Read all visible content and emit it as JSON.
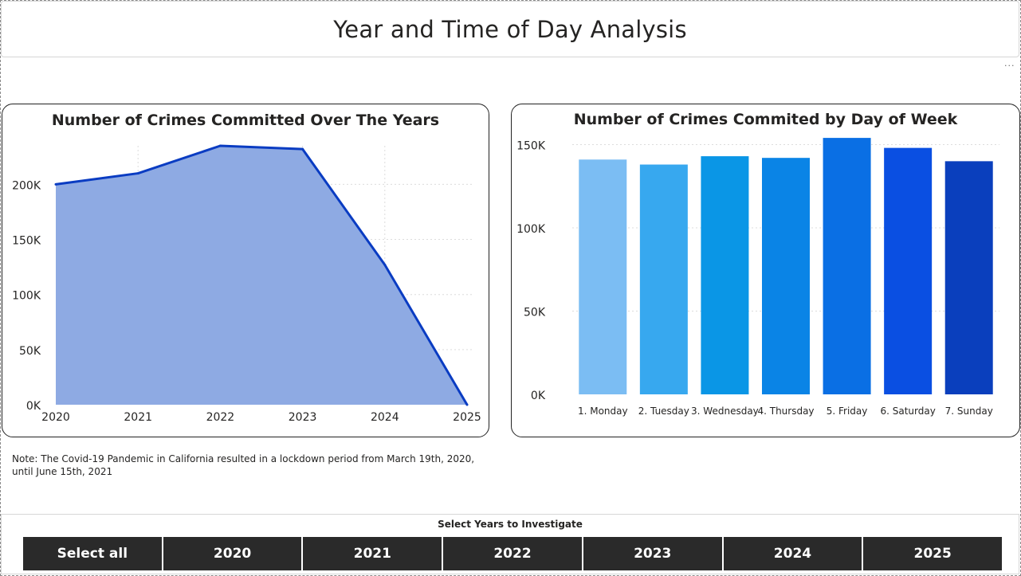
{
  "header": {
    "title": "Year and Time of Day Analysis"
  },
  "toolbar": {
    "more_icon": "more-options-icon",
    "more_glyph": "···"
  },
  "note": {
    "text": "Note: The Covid-19 Pandemic in California resulted in a lockdown period from March 19th, 2020, until June 15th, 2021"
  },
  "slicer": {
    "title": "Select Years to Investigate",
    "options": [
      "Select all",
      "2020",
      "2021",
      "2022",
      "2023",
      "2024",
      "2025"
    ]
  },
  "colors": {
    "area_fill": "#8eaae3",
    "area_line": "#0a3cc2",
    "bars": [
      "#7bbdf3",
      "#37a8ef",
      "#0a96e6",
      "#0a84e6",
      "#0a6fe4",
      "#0a4fe2",
      "#0a3fbd"
    ],
    "slicer_button": "#2a2a2a"
  },
  "chart_data": [
    {
      "type": "area",
      "title": "Number of Crimes Committed Over The Years",
      "x": [
        "2020",
        "2021",
        "2022",
        "2023",
        "2024",
        "2025"
      ],
      "values": [
        200000,
        210000,
        235000,
        232000,
        127000,
        0
      ],
      "yticks": [
        "0K",
        "50K",
        "100K",
        "150K",
        "200K"
      ],
      "ylim": [
        0,
        235000
      ],
      "grid": true
    },
    {
      "type": "bar",
      "title": "Number of Crimes Commited by Day of Week",
      "categories": [
        "1. Monday",
        "2. Tuesday",
        "3. Wednesday",
        "4. Thursday",
        "5. Friday",
        "6. Saturday",
        "7. Sunday"
      ],
      "values": [
        141000,
        138000,
        143000,
        142000,
        154000,
        148000,
        140000
      ],
      "yticks": [
        "0K",
        "50K",
        "100K",
        "150K"
      ],
      "ylim": [
        0,
        155000
      ],
      "grid": true
    }
  ]
}
